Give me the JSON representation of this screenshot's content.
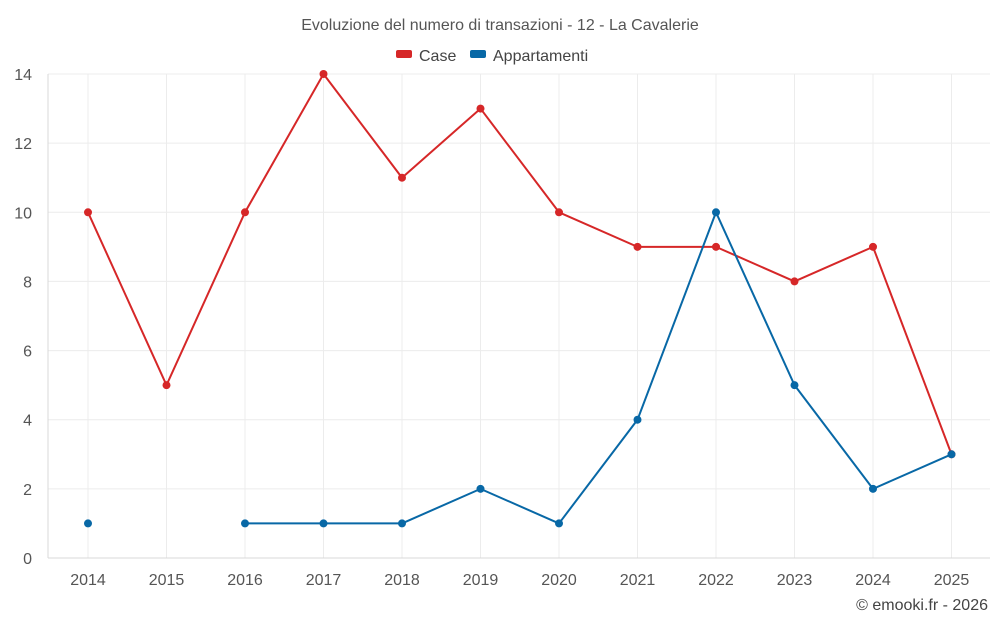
{
  "chart_data": {
    "type": "line",
    "title": "Evoluzione del numero di transazioni - 12 - La Cavalerie",
    "categories": [
      "2014",
      "2015",
      "2016",
      "2017",
      "2018",
      "2019",
      "2020",
      "2021",
      "2022",
      "2023",
      "2024",
      "2025"
    ],
    "series": [
      {
        "name": "Case",
        "color": "#d62728",
        "values": [
          10,
          5,
          10,
          14,
          11,
          13,
          10,
          9,
          9,
          8,
          9,
          3
        ]
      },
      {
        "name": "Appartamenti",
        "color": "#0868a6",
        "values": [
          1,
          null,
          1,
          1,
          1,
          2,
          1,
          4,
          10,
          5,
          2,
          3
        ]
      }
    ],
    "ylim": [
      0,
      14
    ],
    "yticks": [
      0,
      2,
      4,
      6,
      8,
      10,
      12,
      14
    ],
    "xlabel": "",
    "ylabel": "",
    "grid": true,
    "legend": "top-center"
  },
  "credit": "© emooki.fr - 2026"
}
